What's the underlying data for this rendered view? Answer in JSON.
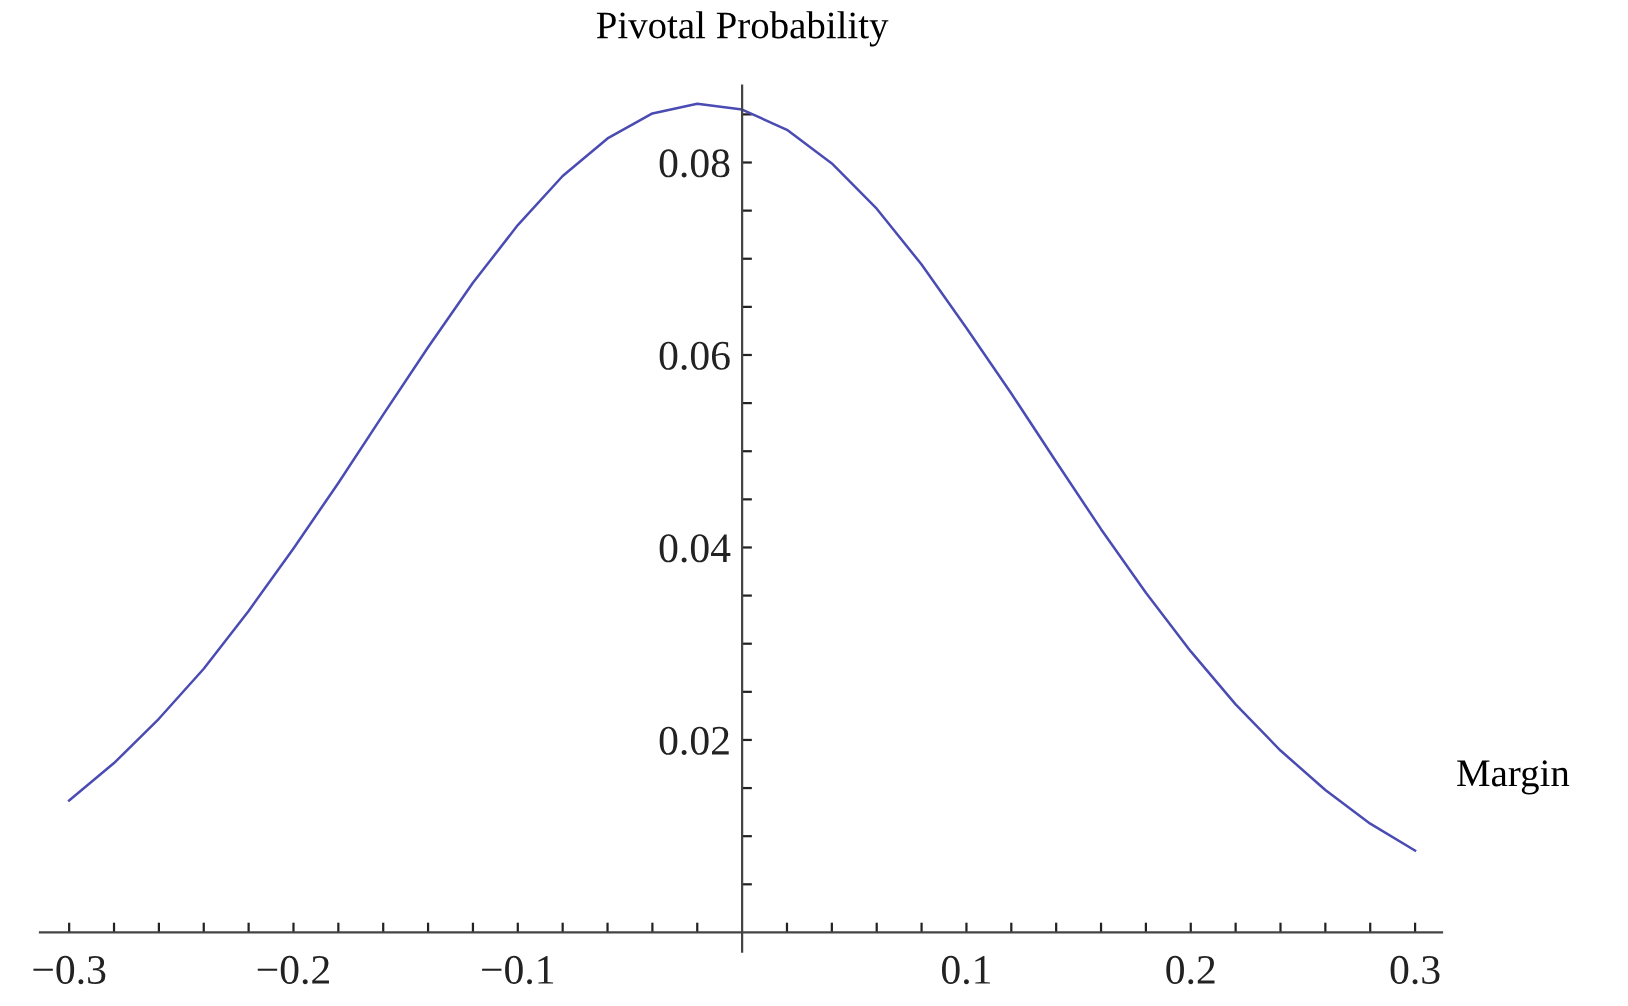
{
  "chart_data": {
    "type": "line",
    "ylabel": "Pivotal Probability",
    "xlabel": "Margin",
    "x": [
      -0.3,
      -0.28,
      -0.26,
      -0.24,
      -0.22,
      -0.2,
      -0.18,
      -0.16,
      -0.14,
      -0.12,
      -0.1,
      -0.08,
      -0.06,
      -0.04,
      -0.02,
      0,
      0.02,
      0.04,
      0.06,
      0.08,
      0.1,
      0.12,
      0.14,
      0.16,
      0.18,
      0.2,
      0.22,
      0.24,
      0.26,
      0.28,
      0.3
    ],
    "series": [
      {
        "color": "#4b4bb4",
        "values": [
          0.0137,
          0.0176,
          0.0222,
          0.0274,
          0.0334,
          0.0399,
          0.0467,
          0.0538,
          0.0608,
          0.0675,
          0.0735,
          0.0786,
          0.0825,
          0.0851,
          0.0861,
          0.0855,
          0.0834,
          0.0799,
          0.0752,
          0.0694,
          0.0628,
          0.056,
          0.0489,
          0.0419,
          0.0353,
          0.0292,
          0.0237,
          0.0189,
          0.0148,
          0.0113,
          0.0085
        ]
      }
    ],
    "xlim": [
      -0.313,
      0.312
    ],
    "ylim": [
      -0.002,
      0.088
    ],
    "xticks": [
      {
        "value": -0.3,
        "label": "−0.3"
      },
      {
        "value": -0.28,
        "label": null
      },
      {
        "value": -0.26,
        "label": null
      },
      {
        "value": -0.24,
        "label": null
      },
      {
        "value": -0.22,
        "label": null
      },
      {
        "value": -0.2,
        "label": "−0.2"
      },
      {
        "value": -0.18,
        "label": null
      },
      {
        "value": -0.16,
        "label": null
      },
      {
        "value": -0.14,
        "label": null
      },
      {
        "value": -0.12,
        "label": null
      },
      {
        "value": -0.1,
        "label": "−0.1"
      },
      {
        "value": -0.08,
        "label": null
      },
      {
        "value": -0.06,
        "label": null
      },
      {
        "value": -0.04,
        "label": null
      },
      {
        "value": -0.02,
        "label": null
      },
      {
        "value": 0.02,
        "label": null
      },
      {
        "value": 0.04,
        "label": null
      },
      {
        "value": 0.06,
        "label": null
      },
      {
        "value": 0.08,
        "label": null
      },
      {
        "value": 0.1,
        "label": "0.1"
      },
      {
        "value": 0.12,
        "label": null
      },
      {
        "value": 0.14,
        "label": null
      },
      {
        "value": 0.16,
        "label": null
      },
      {
        "value": 0.18,
        "label": null
      },
      {
        "value": 0.2,
        "label": "0.2"
      },
      {
        "value": 0.22,
        "label": null
      },
      {
        "value": 0.24,
        "label": null
      },
      {
        "value": 0.26,
        "label": null
      },
      {
        "value": 0.28,
        "label": null
      },
      {
        "value": 0.3,
        "label": "0.3"
      }
    ],
    "yticks": [
      {
        "value": 0.005,
        "label": null
      },
      {
        "value": 0.01,
        "label": null
      },
      {
        "value": 0.015,
        "label": null
      },
      {
        "value": 0.02,
        "label": "0.02"
      },
      {
        "value": 0.025,
        "label": null
      },
      {
        "value": 0.03,
        "label": null
      },
      {
        "value": 0.035,
        "label": null
      },
      {
        "value": 0.04,
        "label": "0.04"
      },
      {
        "value": 0.045,
        "label": null
      },
      {
        "value": 0.05,
        "label": null
      },
      {
        "value": 0.055,
        "label": null
      },
      {
        "value": 0.06,
        "label": "0.06"
      },
      {
        "value": 0.065,
        "label": null
      },
      {
        "value": 0.07,
        "label": null
      },
      {
        "value": 0.075,
        "label": null
      },
      {
        "value": 0.08,
        "label": "0.08"
      },
      {
        "value": 0.085,
        "label": null
      }
    ]
  }
}
